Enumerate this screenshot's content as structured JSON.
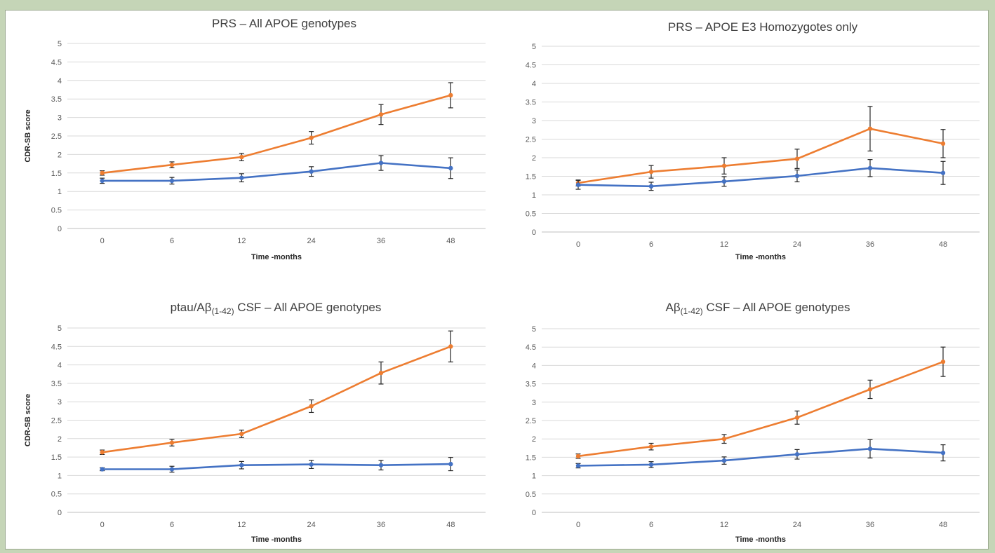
{
  "chart_data": [
    {
      "type": "line",
      "title": "PRS – All APOE genotypes",
      "title_parts": [
        {
          "text": "PRS – All APOE genotypes",
          "sub": false
        }
      ],
      "xlabel": "Time -months",
      "ylabel": "CDR-SB score",
      "categories": [
        "0",
        "6",
        "12",
        "24",
        "36",
        "48"
      ],
      "y_ticks": [
        "0",
        "0.5",
        "1",
        "1.5",
        "2",
        "2.5",
        "3",
        "3.5",
        "4",
        "4.5",
        "5"
      ],
      "ylim": [
        0,
        5
      ],
      "grid": true,
      "series": [
        {
          "color": "#ed7d31",
          "values": [
            1.5,
            1.72,
            1.93,
            2.45,
            3.08,
            3.6
          ],
          "error": [
            0.06,
            0.08,
            0.1,
            0.17,
            0.27,
            0.34
          ]
        },
        {
          "color": "#4472c4",
          "values": [
            1.29,
            1.29,
            1.37,
            1.54,
            1.77,
            1.63
          ],
          "error": [
            0.07,
            0.09,
            0.11,
            0.13,
            0.2,
            0.28
          ]
        }
      ]
    },
    {
      "type": "line",
      "title": "PRS – APOE E3 Homozygotes only",
      "title_parts": [
        {
          "text": "PRS – APOE E3 Homozygotes only",
          "sub": false
        }
      ],
      "xlabel": "Time -months",
      "ylabel": "",
      "categories": [
        "0",
        "6",
        "12",
        "24",
        "36",
        "48"
      ],
      "y_ticks": [
        "0",
        "0.5",
        "1",
        "1.5",
        "2",
        "2.5",
        "3",
        "3.5",
        "4",
        "4.5",
        "5"
      ],
      "ylim": [
        0,
        5
      ],
      "grid": true,
      "series": [
        {
          "color": "#ed7d31",
          "values": [
            1.32,
            1.62,
            1.78,
            1.97,
            2.78,
            2.38
          ],
          "error": [
            0.08,
            0.17,
            0.22,
            0.26,
            0.6,
            0.38
          ]
        },
        {
          "color": "#4472c4",
          "values": [
            1.27,
            1.23,
            1.36,
            1.51,
            1.72,
            1.59
          ],
          "error": [
            0.12,
            0.11,
            0.13,
            0.16,
            0.23,
            0.31
          ]
        }
      ]
    },
    {
      "type": "line",
      "title": "ptau/Aβ(1-42) CSF – All APOE genotypes",
      "title_parts": [
        {
          "text": "ptau/Aβ",
          "sub": false
        },
        {
          "text": "(1-42)",
          "sub": true
        },
        {
          "text": " CSF – All APOE genotypes",
          "sub": false
        }
      ],
      "xlabel": "Time -months",
      "ylabel": "CDR-SB score",
      "categories": [
        "0",
        "6",
        "12",
        "24",
        "36",
        "48"
      ],
      "y_ticks": [
        "0",
        "0.5",
        "1",
        "1.5",
        "2",
        "2.5",
        "3",
        "3.5",
        "4",
        "4.5",
        "5"
      ],
      "ylim": [
        0,
        5
      ],
      "grid": true,
      "series": [
        {
          "color": "#ed7d31",
          "values": [
            1.63,
            1.89,
            2.13,
            2.88,
            3.78,
            4.5
          ],
          "error": [
            0.06,
            0.09,
            0.1,
            0.17,
            0.3,
            0.42
          ]
        },
        {
          "color": "#4472c4",
          "values": [
            1.17,
            1.17,
            1.28,
            1.3,
            1.28,
            1.31
          ],
          "error": [
            0.04,
            0.08,
            0.1,
            0.11,
            0.13,
            0.18
          ]
        }
      ]
    },
    {
      "type": "line",
      "title": "Aβ(1-42) CSF – All APOE genotypes",
      "title_parts": [
        {
          "text": "Aβ",
          "sub": false
        },
        {
          "text": "(1-42)",
          "sub": true
        },
        {
          "text": " CSF – All APOE genotypes",
          "sub": false
        }
      ],
      "xlabel": "Time -months",
      "ylabel": "",
      "categories": [
        "0",
        "6",
        "12",
        "24",
        "36",
        "48"
      ],
      "y_ticks": [
        "0",
        "0.5",
        "1",
        "1.5",
        "2",
        "2.5",
        "3",
        "3.5",
        "4",
        "4.5",
        "5"
      ],
      "ylim": [
        0,
        5
      ],
      "grid": true,
      "series": [
        {
          "color": "#ed7d31",
          "values": [
            1.53,
            1.79,
            2.0,
            2.58,
            3.35,
            4.1
          ],
          "error": [
            0.06,
            0.09,
            0.12,
            0.18,
            0.25,
            0.4
          ]
        },
        {
          "color": "#4472c4",
          "values": [
            1.27,
            1.3,
            1.41,
            1.58,
            1.73,
            1.62
          ],
          "error": [
            0.06,
            0.08,
            0.1,
            0.13,
            0.25,
            0.22
          ]
        }
      ]
    }
  ]
}
